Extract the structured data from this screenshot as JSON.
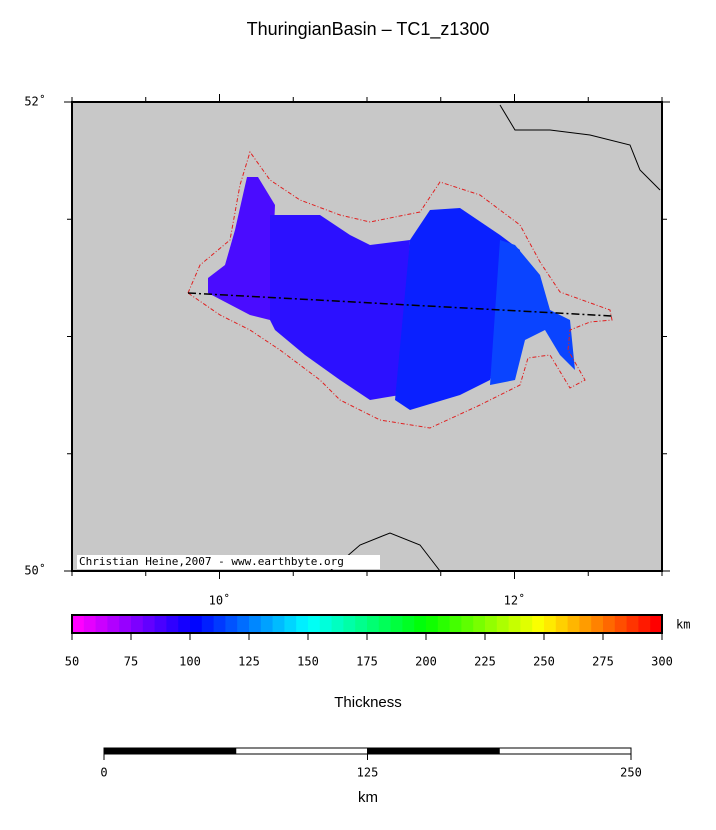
{
  "title": "ThuringianBasin – TC1_z1300",
  "map": {
    "xlim": [
      9,
      13
    ],
    "ylim": [
      50,
      52
    ],
    "xticks": [
      {
        "value": 10,
        "label": "10˚"
      },
      {
        "value": 12,
        "label": "12˚"
      }
    ],
    "yticks": [
      {
        "value": 50,
        "label": "50˚"
      },
      {
        "value": 52,
        "label": "52˚"
      }
    ],
    "credit": "Christian Heine,2007 - www.earthbyte.org"
  },
  "colorbar": {
    "range": [
      50,
      300
    ],
    "ticks": [
      50,
      75,
      100,
      125,
      150,
      175,
      200,
      225,
      250,
      275,
      300
    ],
    "unit": "km",
    "label": "Thickness"
  },
  "scalebar": {
    "range": [
      0,
      250
    ],
    "ticks": [
      0,
      125,
      250
    ],
    "unit": "km"
  }
}
